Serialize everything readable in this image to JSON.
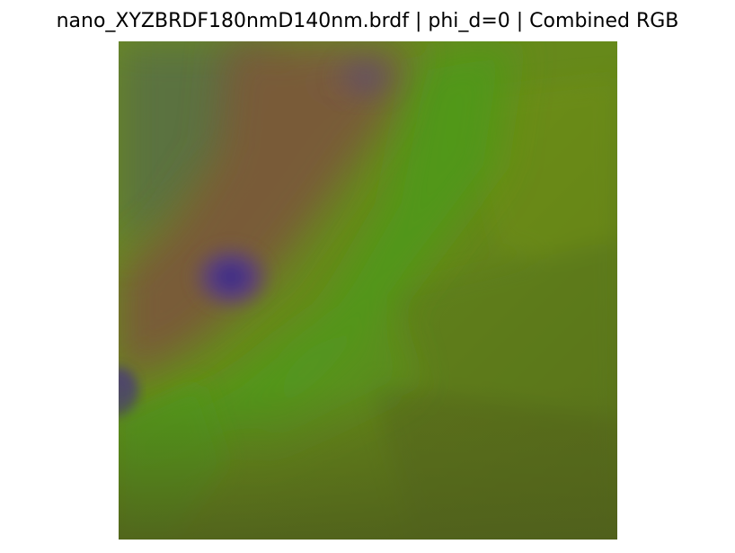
{
  "figure": {
    "title": "nano_XYZBRDF180nmD140nm.brdf | phi_d=0 | Combined RGB"
  },
  "image": {
    "type": "brdf-slice-rgb-rendering",
    "colors": {
      "base": "#5f7e1a",
      "top_left_grey_green": "#5a7040",
      "brown_band": "#7a5a3a",
      "purple_hotspot": "#4a3a8a",
      "bright_green": "#4e9a1a",
      "olive_right": "#6b8a16",
      "dark_olive_bottom_right": "#556a1c"
    }
  }
}
